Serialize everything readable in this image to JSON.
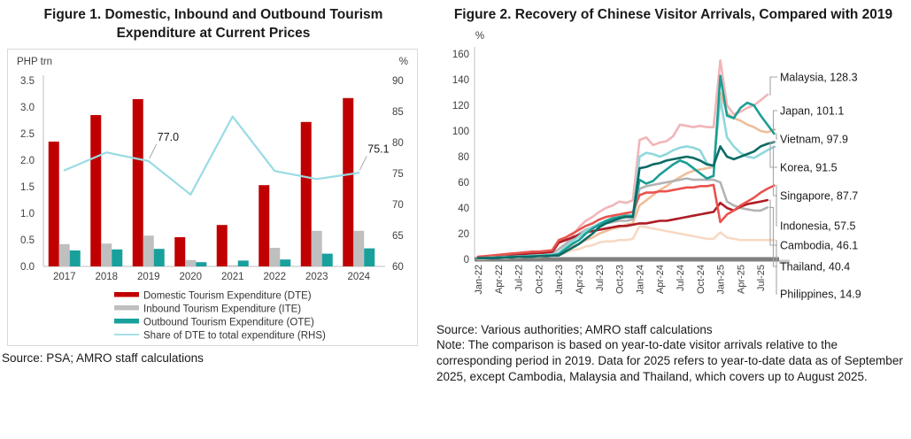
{
  "figure1": {
    "title": "Figure 1. Domestic, Inbound and Outbound Tourism Expenditure at Current Prices",
    "source": "Source: PSA; AMRO staff calculations"
  },
  "figure2": {
    "title": "Figure 2. Recovery of Chinese Visitor Arrivals, Compared with 2019",
    "source": "Source: Various authorities; AMRO staff calculations",
    "note": "Note: The comparison is based on year-to-date visitor arrivals relative to the corresponding period in 2019. Data for 2025 refers to year-to-date data as of September 2025, except Cambodia, Malaysia and Thailand, which covers up to August 2025."
  },
  "chart_data": [
    {
      "type": "bar",
      "title": "Figure 1. Domestic, Inbound and Outbound Tourism Expenditure at Current Prices",
      "categories": [
        "2017",
        "2018",
        "2019",
        "2020",
        "2021",
        "2022",
        "2023",
        "2024"
      ],
      "left_axis": {
        "label": "PHP trn",
        "min": 0,
        "max": 3.5,
        "step": 0.5
      },
      "right_axis": {
        "label": "%",
        "min": 60,
        "max": 90,
        "step": 5
      },
      "legend_position": "bottom",
      "grid": false,
      "series": [
        {
          "name": "Domestic Tourism Expenditure (DTE)",
          "type": "bar",
          "axis": "left",
          "color": "#C00000",
          "values": [
            2.35,
            2.85,
            3.15,
            0.55,
            0.78,
            1.53,
            2.72,
            3.17
          ]
        },
        {
          "name": "Inbound Tourism Expenditure (ITE)",
          "type": "bar",
          "axis": "left",
          "color": "#BFBFBF",
          "values": [
            0.42,
            0.43,
            0.58,
            0.12,
            0.02,
            0.35,
            0.67,
            0.67
          ]
        },
        {
          "name": "Outbound Tourism Expenditure (OTE)",
          "type": "bar",
          "axis": "left",
          "color": "#18A09C",
          "values": [
            0.3,
            0.32,
            0.33,
            0.08,
            0.11,
            0.13,
            0.24,
            0.34
          ]
        },
        {
          "name": "Share of DTE to total expenditure (RHS)",
          "type": "line",
          "axis": "right",
          "color": "#9ADBE3",
          "values": [
            75.5,
            78.4,
            77.0,
            71.6,
            84.2,
            75.4,
            74.1,
            75.1
          ]
        }
      ],
      "data_labels": [
        {
          "series": 3,
          "category_index": 2,
          "text": "77.0"
        },
        {
          "series": 3,
          "category_index": 7,
          "text": "75.1"
        }
      ]
    },
    {
      "type": "line",
      "title": "Figure 2. Recovery of Chinese Visitor Arrivals, Compared with 2019",
      "ylabel": "%",
      "y_axis": {
        "min": 0,
        "max": 160,
        "step": 20
      },
      "grid": false,
      "x_tick_labels": [
        "Jan-22",
        "Apr-22",
        "Jul-22",
        "Oct-22",
        "Jan-23",
        "Apr-23",
        "Jul-23",
        "Oct-23",
        "Jan-24",
        "Apr-24",
        "Jul-24",
        "Oct-24",
        "Jan-25",
        "Apr-25",
        "Jul-25"
      ],
      "x_unit": "month, Jan-22 to Sep-25",
      "series": [
        {
          "name": "Malaysia",
          "end_label": "Malaysia, 128.3",
          "end_value": 128.3,
          "color": "#F2B5B8",
          "values": [
            1,
            1,
            1.5,
            2,
            2,
            2.5,
            3,
            3,
            3.5,
            4,
            4.5,
            5,
            8,
            12,
            18,
            25,
            30,
            33,
            37,
            40,
            42,
            45,
            44,
            46,
            93,
            95,
            89,
            91,
            92,
            96,
            105,
            104,
            103,
            104,
            103,
            103,
            155,
            120,
            113,
            115,
            118,
            120,
            124,
            128.3,
            null
          ]
        },
        {
          "name": "Japan",
          "end_label": "Japan, 101.1",
          "end_value": 101.1,
          "color": "#EFBE9A",
          "values": [
            1,
            1,
            1,
            1.5,
            1.5,
            2,
            2,
            2.5,
            2.5,
            3,
            3,
            3.5,
            5,
            8,
            10,
            12,
            15,
            17,
            20,
            22,
            24,
            25,
            27,
            28,
            42,
            46,
            50,
            54,
            57,
            61,
            64,
            67,
            69,
            70,
            71,
            72,
            130,
            114,
            110,
            108,
            105,
            103,
            100,
            99,
            101.1
          ]
        },
        {
          "name": "Vietnam",
          "end_label": "Vietnam, 97.9",
          "end_value": 97.9,
          "color": "#1B9E94",
          "values": [
            1,
            1,
            1,
            1.5,
            1.5,
            2,
            2,
            2,
            2.5,
            2.5,
            3,
            3,
            4,
            8,
            12,
            15,
            20,
            24,
            27,
            30,
            32,
            33,
            34,
            34,
            62,
            59,
            61,
            66,
            70,
            74,
            77,
            75,
            71,
            67,
            63,
            65,
            143,
            112,
            110,
            118,
            122,
            120,
            112,
            105,
            97.9
          ]
        },
        {
          "name": "Korea",
          "end_label": "Korea, 91.5",
          "end_value": 91.5,
          "color": "#0C6B66",
          "values": [
            1,
            1,
            1,
            1,
            1.5,
            1.5,
            2,
            2,
            2,
            2.5,
            2.5,
            3,
            3,
            6,
            9,
            12,
            16,
            20,
            25,
            28,
            30,
            32,
            33,
            33,
            71,
            72,
            74,
            75,
            77,
            78,
            79,
            80,
            79,
            77,
            74,
            73,
            88,
            80,
            78,
            80,
            82,
            84,
            88,
            90,
            91.5
          ]
        },
        {
          "name": "Singapore",
          "end_label": "Singapore, 87.7",
          "end_value": 87.7,
          "color": "#8FD7DB",
          "values": [
            1,
            1,
            1.5,
            1.5,
            2,
            2,
            2.5,
            2.5,
            3,
            3,
            3.5,
            4,
            5,
            10,
            14,
            18,
            22,
            25,
            28,
            30,
            31,
            32,
            33,
            33,
            80,
            83,
            82,
            80,
            82,
            85,
            87,
            88,
            87,
            85,
            75,
            72,
            125,
            95,
            88,
            83,
            80,
            79,
            82,
            85,
            87.7
          ]
        },
        {
          "name": "Indonesia",
          "end_label": "Indonesia, 57.5",
          "end_value": 57.5,
          "color": "#E8534E",
          "values": [
            2,
            2.5,
            3,
            3.5,
            4,
            4.5,
            5,
            5.5,
            6,
            6,
            6.5,
            7,
            15,
            17,
            20,
            23,
            26,
            28,
            31,
            33,
            34,
            35,
            36,
            37,
            50,
            52,
            52,
            53,
            53,
            54,
            55,
            56,
            56,
            57,
            57,
            58,
            29,
            35,
            38,
            42,
            45,
            48,
            52,
            55,
            57.5
          ]
        },
        {
          "name": "Cambodia",
          "end_label": "Cambodia, 46.1",
          "end_value": 46.1,
          "color": "#AE1C24",
          "values": [
            2,
            2,
            2.5,
            3,
            3,
            3.5,
            4,
            4,
            4.5,
            5,
            5,
            5.5,
            13,
            15,
            17,
            19,
            21,
            22,
            23,
            24,
            25,
            26,
            26,
            27,
            28,
            28,
            29,
            30,
            30,
            31,
            32,
            33,
            34,
            35,
            36,
            37,
            44,
            40,
            38,
            41,
            43,
            44,
            45,
            46.1,
            null
          ]
        },
        {
          "name": "Thailand",
          "end_label": "Thailand, 40.4",
          "end_value": 40.4,
          "color": "#B3B3B3",
          "values": [
            1,
            1,
            1.5,
            2,
            2,
            2.5,
            3,
            3,
            3.5,
            4,
            4,
            4.5,
            8,
            12,
            16,
            20,
            23,
            25,
            27,
            28,
            29,
            30,
            30,
            31,
            55,
            57,
            58,
            59,
            60,
            61,
            62,
            63,
            62,
            62,
            62,
            62,
            60,
            45,
            42,
            40,
            39,
            38,
            38,
            40.4,
            null
          ]
        },
        {
          "name": "Philippines",
          "end_label": "Philippines, 14.9",
          "end_value": 14.9,
          "color": "#F7D9C4",
          "values": [
            0.5,
            0.5,
            1,
            1,
            1,
            1.5,
            1.5,
            2,
            2,
            2,
            2.5,
            3,
            3,
            5,
            7,
            8,
            10,
            11,
            13,
            14,
            14,
            15,
            15,
            16,
            26,
            25,
            24,
            23,
            22,
            21,
            20,
            19,
            18,
            17,
            16,
            16,
            21,
            17,
            16,
            15,
            15,
            15,
            15,
            15,
            14.9
          ]
        }
      ]
    }
  ]
}
